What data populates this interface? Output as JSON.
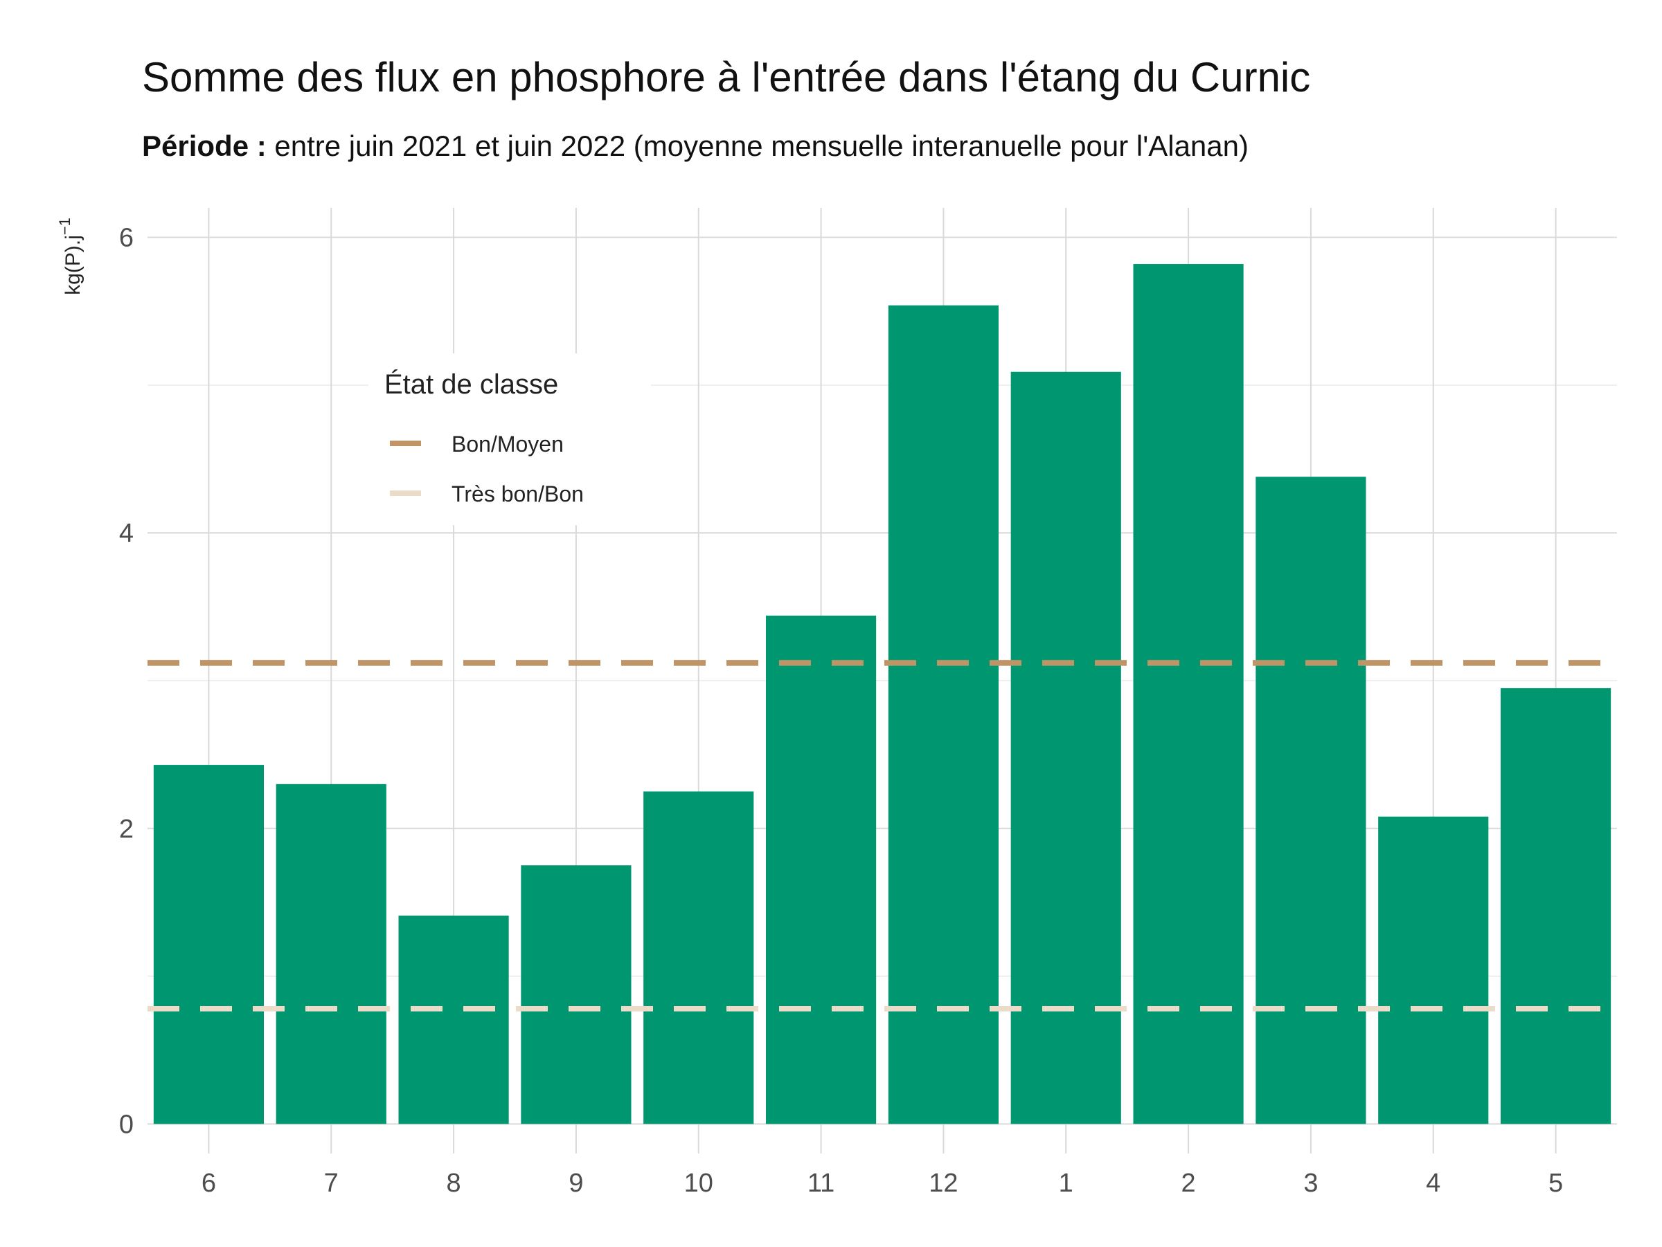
{
  "chart_data": {
    "type": "bar",
    "title": "Somme des flux en phosphore à l'entrée dans l'étang du Curnic",
    "subtitle_bold": "Période :",
    "subtitle_rest": " entre juin 2021 et juin 2022 (moyenne mensuelle interanuelle pour l'Alanan)",
    "xlabel": "",
    "ylabel": "kg(P).j",
    "ylabel_superscript": "−1",
    "categories": [
      "6",
      "7",
      "8",
      "9",
      "10",
      "11",
      "12",
      "1",
      "2",
      "3",
      "4",
      "5"
    ],
    "values": [
      2.43,
      2.3,
      1.41,
      1.75,
      2.25,
      3.44,
      5.54,
      5.09,
      5.82,
      4.38,
      2.08,
      2.95
    ],
    "ylim": [
      -0.2,
      6.2
    ],
    "yticks": [
      0,
      2,
      4,
      6
    ],
    "bar_color": "#009670",
    "thresholds": [
      {
        "name": "Bon/Moyen",
        "value": 3.12,
        "color": "#C19465"
      },
      {
        "name": "Très bon/Bon",
        "value": 0.78,
        "color": "#EBDBC9"
      }
    ],
    "legend": {
      "title": "État de classe",
      "position": "inside-top-left",
      "entries": [
        "Bon/Moyen",
        "Très bon/Bon"
      ]
    },
    "grid": true
  }
}
